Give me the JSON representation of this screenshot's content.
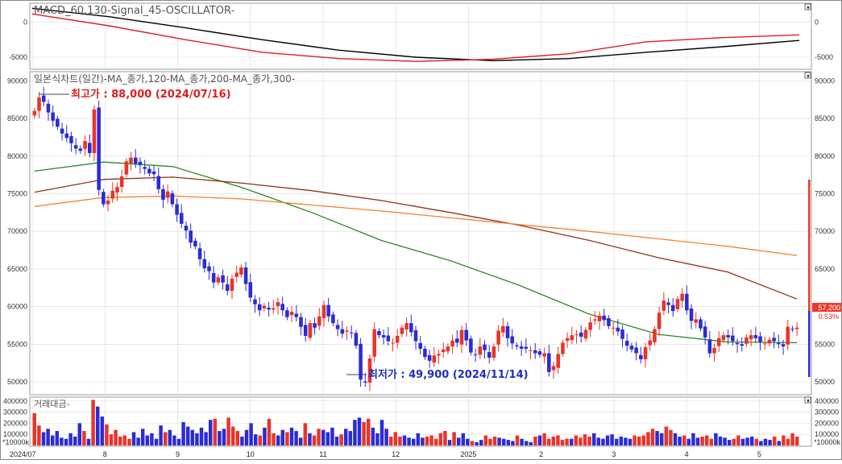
{
  "colors": {
    "up": "#e8342a",
    "down": "#2b2bd6",
    "macd": "#000000",
    "signal": "#e01d1d",
    "ma120": "#2a8a1e",
    "ma200": "#8b3412",
    "ma300": "#f3812d",
    "grid": "#d9d9d9",
    "border": "#8a8a8a",
    "current_price_bg": "#e83a2c",
    "high_text": "#e01d1d",
    "low_text": "#1f2fc0"
  },
  "macd_panel": {
    "title_parts": [
      "MACD_60,130",
      "Signal_45",
      "OSCILLATOR"
    ],
    "ticks_left": [
      "0",
      "-5000"
    ],
    "ticks_right": [
      "0",
      "-5000"
    ],
    "corner_button": "▼"
  },
  "price_panel": {
    "legend_parts": [
      "일본식차트(일간)",
      "MA_종가,120",
      "MA_종가,200",
      "MA_종가,300"
    ],
    "high_annotation": "최고가 : 88,000 (2024/07/16)",
    "low_annotation": "최저가 : 49,900 (2024/11/14)",
    "current_price": "57,200",
    "current_change": "0.53%",
    "corner_button": "▼"
  },
  "volume_panel": {
    "legend": "거래대금",
    "unit_label": "*10000k",
    "ticks": [
      "400000",
      "300000",
      "200000",
      "100000"
    ],
    "corner_button": "▼"
  },
  "x_axis": {
    "labels": [
      "2024/07",
      "8",
      "9",
      "10",
      "11",
      "12",
      "2025",
      "2",
      "3",
      "4",
      "5"
    ]
  },
  "chart_data": [
    {
      "type": "line",
      "title": "MACD_60,130-Signal_45-OSCILLATOR",
      "yticks": [
        0,
        -5000
      ],
      "ylim": [
        -6500,
        2500
      ],
      "x_points": [
        0,
        20,
        40,
        60,
        80,
        100,
        120,
        140,
        160,
        180,
        200
      ],
      "series": [
        {
          "name": "MACD_60,130",
          "values": [
            2000,
            800,
            -800,
            -2500,
            -4000,
            -5000,
            -5500,
            -5200,
            -4300,
            -3500,
            -2600
          ]
        },
        {
          "name": "Signal_45",
          "values": [
            1200,
            -500,
            -2500,
            -4300,
            -5200,
            -5600,
            -5300,
            -4500,
            -2800,
            -2200,
            -1800
          ]
        }
      ]
    },
    {
      "type": "candlestick",
      "title": "일본식차트(일간)-MA_종가,120-MA_종가,200-MA_종가,300",
      "ylim": [
        48500,
        91000
      ],
      "yticks": [
        50000,
        55000,
        60000,
        65000,
        70000,
        75000,
        80000,
        85000,
        90000
      ],
      "x_labels": [
        "2024/07",
        "8",
        "9",
        "10",
        "11",
        "12",
        "2025",
        "2",
        "3",
        "4",
        "5"
      ],
      "closes": [
        86000,
        87800,
        87200,
        85800,
        84700,
        83900,
        83000,
        82400,
        81700,
        81000,
        80700,
        82000,
        80400,
        86200,
        75500,
        73600,
        74100,
        75400,
        75900,
        77300,
        79300,
        79800,
        79000,
        78800,
        78300,
        77700,
        77600,
        75600,
        74200,
        75300,
        73600,
        72200,
        71000,
        70100,
        68500,
        68000,
        66300,
        65100,
        64700,
        63200,
        63900,
        63200,
        62100,
        63700,
        64500,
        65200,
        63000,
        61200,
        60300,
        59500,
        60100,
        59600,
        59800,
        60600,
        59500,
        58600,
        59300,
        58600,
        57300,
        56100,
        57800,
        57200,
        58700,
        60200,
        58700,
        57800,
        57000,
        56400,
        56800,
        56500,
        54800,
        50300,
        49900,
        53100,
        57000,
        56200,
        55900,
        55400,
        55200,
        56100,
        57200,
        57800,
        56600,
        55400,
        54400,
        53300,
        52800,
        53500,
        53700,
        54300,
        54700,
        55500,
        55200,
        56900,
        55500,
        53900,
        53600,
        54700,
        54200,
        53200,
        54700,
        56800,
        57400,
        55800,
        55100,
        54700,
        54400,
        54400,
        54200,
        53800,
        53600,
        53800,
        51300,
        52100,
        53700,
        55200,
        55800,
        56200,
        56300,
        56000,
        56900,
        57900,
        58300,
        58800,
        58200,
        57400,
        57200,
        56700,
        55700,
        54800,
        54300,
        53800,
        53000,
        54600,
        55500,
        57000,
        59200,
        60800,
        60200,
        59400,
        61000,
        61700,
        59500,
        58100,
        58300,
        57100,
        55900,
        53800,
        54500,
        55800,
        56200,
        55900,
        55400,
        55000,
        54800,
        55900,
        56200,
        55800,
        55300,
        55100,
        55600,
        55400,
        55000,
        54700,
        57300,
        57000,
        57200
      ],
      "series": [
        {
          "name": "MA_종가,120",
          "x_points": [
            0,
            15,
            30,
            45,
            60,
            75,
            90,
            105,
            120,
            135,
            150,
            165
          ],
          "values": [
            78000,
            79200,
            78600,
            75800,
            72500,
            68800,
            66100,
            62800,
            59000,
            56300,
            55300,
            55200
          ]
        },
        {
          "name": "MA_종가,200",
          "x_points": [
            0,
            15,
            30,
            45,
            60,
            75,
            90,
            105,
            120,
            135,
            150,
            165
          ],
          "values": [
            75200,
            76900,
            77200,
            76400,
            75400,
            74100,
            72500,
            70800,
            68800,
            66500,
            64600,
            61000
          ]
        },
        {
          "name": "MA_종가,300",
          "x_points": [
            0,
            15,
            30,
            45,
            60,
            75,
            90,
            105,
            120,
            135,
            150,
            165
          ],
          "values": [
            73300,
            74500,
            74700,
            74300,
            73500,
            72700,
            71800,
            70900,
            70000,
            69000,
            68000,
            66800
          ]
        }
      ]
    },
    {
      "type": "bar",
      "title": "거래대금",
      "unit": "*10000k",
      "ylim": [
        0,
        420000
      ],
      "yticks": [
        100000,
        200000,
        300000,
        400000
      ],
      "values": [
        290000,
        180000,
        120000,
        150000,
        90000,
        130000,
        70000,
        60000,
        110000,
        80000,
        200000,
        130000,
        60000,
        410000,
        350000,
        260000,
        190000,
        100000,
        140000,
        80000,
        90000,
        60000,
        120000,
        70000,
        150000,
        90000,
        110000,
        60000,
        180000,
        120000,
        140000,
        90000,
        60000,
        210000,
        170000,
        140000,
        110000,
        160000,
        120000,
        230000,
        240000,
        130000,
        150000,
        250000,
        170000,
        130000,
        80000,
        140000,
        200000,
        100000,
        90000,
        160000,
        240000,
        110000,
        90000,
        140000,
        120000,
        160000,
        130000,
        70000,
        200000,
        110000,
        90000,
        150000,
        140000,
        120000,
        160000,
        80000,
        100000,
        150000,
        130000,
        230000,
        250000,
        210000,
        240000,
        160000,
        110000,
        230000,
        150000,
        80000,
        120000,
        80000,
        90000,
        70000,
        60000,
        110000,
        70000,
        80000,
        90000,
        60000,
        110000,
        130000,
        50000,
        120000,
        70000,
        110000,
        60000,
        40000,
        30000,
        50000,
        90000,
        60000,
        80000,
        70000,
        60000,
        50000,
        40000,
        90000,
        60000,
        40000,
        30000,
        80000,
        90000,
        110000,
        60000,
        80000,
        90000,
        50000,
        60000,
        60000,
        90000,
        70000,
        100000,
        80000,
        110000,
        70000,
        60000,
        90000,
        100000,
        60000,
        80000,
        70000,
        60000,
        90000,
        80000,
        90000,
        120000,
        150000,
        130000,
        110000,
        170000,
        140000,
        110000,
        80000,
        90000,
        60000,
        110000,
        70000,
        80000,
        90000,
        60000,
        110000,
        80000,
        70000,
        50000,
        60000,
        90000,
        60000,
        70000,
        80000,
        60000,
        40000,
        60000,
        50000,
        80000,
        40000,
        90000,
        60000,
        110000,
        80000
      ]
    }
  ]
}
